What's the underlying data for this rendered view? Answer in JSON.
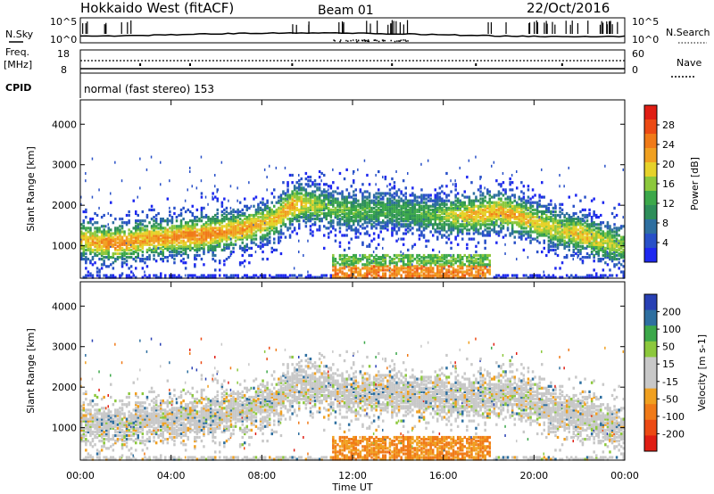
{
  "header": {
    "radar": "Hokkaido West (fitACF)",
    "beam": "Beam 01",
    "date": "22/Oct/2016"
  },
  "noise_panel": {
    "left_label": "N.Sky",
    "right_label": "N.Search",
    "left_ticks": [
      "10^5",
      "10^0"
    ],
    "right_ticks": [
      "10^5",
      "10^0"
    ]
  },
  "freq_panel": {
    "left_label_1": "Freq.",
    "left_label_2": "[MHz]",
    "left_ticks": [
      "18",
      "8"
    ],
    "right_label": "Nave",
    "right_ticks": [
      "60",
      "0"
    ]
  },
  "cpid": {
    "label": "CPID",
    "text": "normal (fast stereo) 153"
  },
  "colors": {
    "power": [
      "#1e28f0",
      "#2850c8",
      "#2e6fa0",
      "#2e8e5a",
      "#3ca84a",
      "#8cc83c",
      "#e6d22a",
      "#f0a020",
      "#f07a18",
      "#ec4a14",
      "#e01e14"
    ],
    "velocity": [
      "#e01e14",
      "#ec4a14",
      "#f07a18",
      "#f0a020",
      "#c8c8c8",
      "#c8c8c8",
      "#8cc83c",
      "#3ca84a",
      "#2e6fa0",
      "#2840b4"
    ]
  },
  "chart_data": [
    {
      "type": "heatmap",
      "variable": "Power",
      "ylabel": "Slant Range [km]",
      "xlabel": "Time UT",
      "x_ticks": [
        "00:00",
        "04:00",
        "08:00",
        "12:00",
        "16:00",
        "20:00",
        "00:00"
      ],
      "y_ticks": [
        1000,
        2000,
        3000,
        4000
      ],
      "ylim": [
        200,
        4600
      ],
      "xlim_hours": [
        0,
        24
      ],
      "colorbar": {
        "label": "Power [dB]",
        "ticks": [
          4,
          8,
          12,
          16,
          20,
          24,
          28
        ],
        "range": [
          0,
          32
        ]
      },
      "bands": [
        {
          "t": [
            0,
            1.5,
            3,
            5,
            7,
            8.5,
            9.3,
            10,
            11,
            12,
            14,
            15.5,
            17,
            18.5,
            20,
            21,
            22,
            23,
            24
          ],
          "r": [
            1150,
            1050,
            1180,
            1250,
            1400,
            1650,
            2000,
            2050,
            1900,
            1850,
            1850,
            1750,
            1750,
            1850,
            1600,
            1400,
            1300,
            1100,
            1000
          ],
          "p": [
            18,
            22,
            20,
            22,
            20,
            18,
            20,
            16,
            12,
            12,
            10,
            12,
            18,
            20,
            18,
            16,
            18,
            16,
            14
          ]
        }
      ]
    },
    {
      "type": "heatmap",
      "variable": "Velocity",
      "ylabel": "Slant Range [km]",
      "xlabel": "Time UT",
      "x_ticks": [
        "00:00",
        "04:00",
        "08:00",
        "12:00",
        "16:00",
        "20:00",
        "00:00"
      ],
      "y_ticks": [
        1000,
        2000,
        3000,
        4000
      ],
      "ylim": [
        200,
        4600
      ],
      "xlim_hours": [
        0,
        24
      ],
      "colorbar": {
        "label": "Velocity [m s-1]",
        "ticks": [
          200,
          100,
          50,
          15,
          -15,
          -50,
          -100,
          -200
        ]
      }
    }
  ]
}
